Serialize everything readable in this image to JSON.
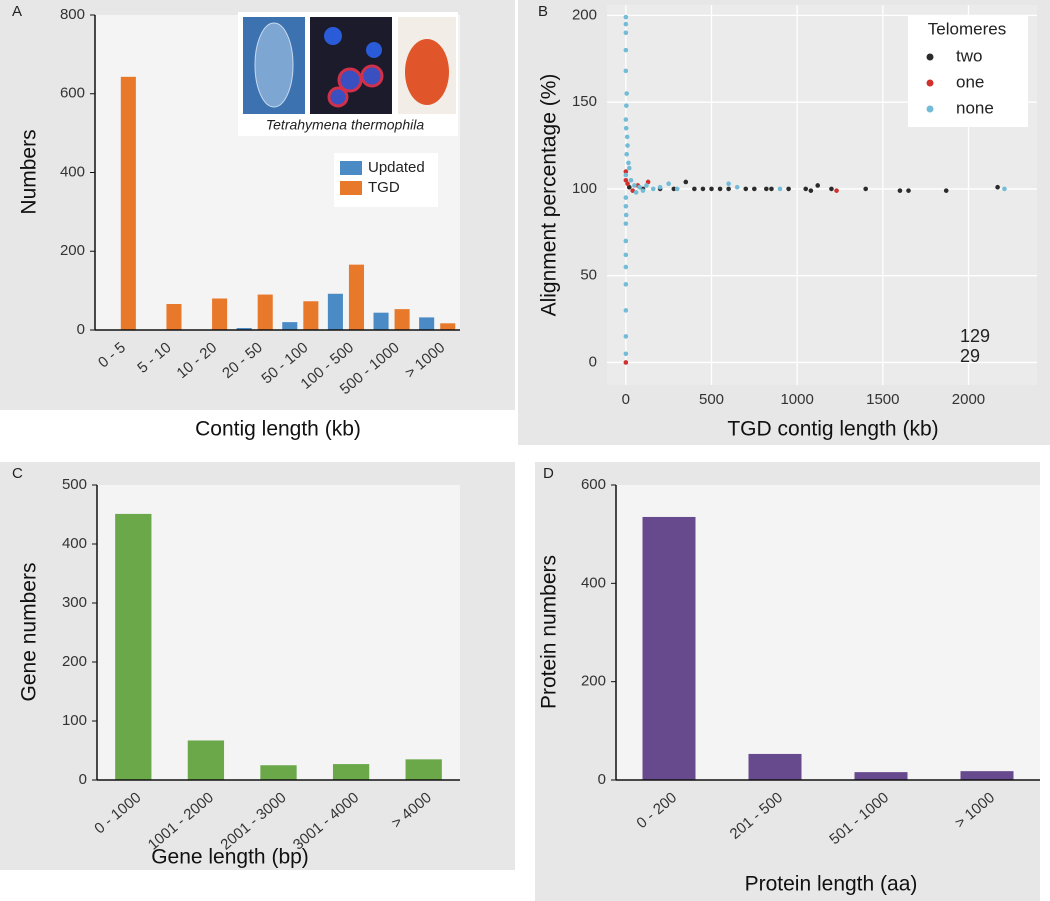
{
  "chart_data": [
    {
      "type": "bar",
      "panel": "A",
      "x_label": "Contig length (kb)",
      "y_label": "Numbers",
      "inset_caption": "Tetrahymena thermophila",
      "categories": [
        "0 - 5",
        "5 - 10",
        "10 - 20",
        "20 - 50",
        "50 - 100",
        "100 - 500",
        "500 - 1000",
        "> 1000"
      ],
      "series": [
        {
          "name": "Updated",
          "color": "#4a8bc6",
          "values": [
            0,
            0,
            0,
            5,
            20,
            92,
            44,
            32
          ]
        },
        {
          "name": "TGD",
          "color": "#e8792b",
          "values": [
            643,
            66,
            80,
            90,
            73,
            166,
            53,
            17
          ]
        }
      ],
      "ylim": [
        0,
        800
      ],
      "yticks": [
        0,
        200,
        400,
        600,
        800
      ],
      "grid": false
    },
    {
      "type": "scatter",
      "panel": "B",
      "x_label": "TGD contig length (kb)",
      "y_label": "Alignment percentage (%)",
      "legend_title": "Telomeres",
      "legend": "top-right",
      "series": [
        {
          "name": "two",
          "color": "#2b2b2b",
          "x": [
            20,
            100,
            200,
            280,
            350,
            400,
            450,
            500,
            550,
            600,
            700,
            750,
            820,
            850,
            950,
            1050,
            1080,
            1120,
            1200,
            1400,
            1600,
            1650,
            1870,
            2170
          ],
          "values": [
            101,
            100,
            100,
            100,
            104,
            100,
            100,
            100,
            100,
            100,
            100,
            100,
            100,
            100,
            100,
            100,
            99,
            102,
            100,
            100,
            99,
            99,
            99,
            101
          ]
        },
        {
          "name": "one",
          "color": "#d0312d",
          "x": [
            0,
            0,
            10,
            40,
            70,
            130,
            1230,
            0
          ],
          "values": [
            110,
            105,
            103,
            99,
            102,
            104,
            99,
            0
          ]
        },
        {
          "name": "none",
          "color": "#72bcd8",
          "x": [
            0,
            0,
            0,
            0,
            0,
            5,
            3,
            0,
            2,
            8,
            10,
            5,
            15,
            20,
            0,
            0,
            0,
            2,
            0,
            0,
            0,
            0,
            0,
            0,
            0,
            0,
            30,
            50,
            80,
            120,
            160,
            200,
            250,
            300,
            600,
            650,
            900,
            2210,
            60,
            100
          ],
          "values": [
            199,
            195,
            190,
            180,
            168,
            155,
            148,
            140,
            135,
            130,
            125,
            120,
            115,
            112,
            108,
            95,
            90,
            85,
            80,
            70,
            62,
            55,
            45,
            30,
            15,
            5,
            105,
            102,
            101,
            102,
            100,
            101,
            103,
            100,
            103,
            101,
            100,
            100,
            98,
            99
          ]
        }
      ],
      "annotations": [
        {
          "text": "129",
          "color": "#2b3a2b"
        },
        {
          "text": "29",
          "color": "#c0392b"
        }
      ],
      "xlim": [
        -110,
        2400
      ],
      "xticks": [
        0,
        500,
        1000,
        1500,
        2000
      ],
      "ylim": [
        -13,
        206
      ],
      "yticks": [
        0,
        50,
        100,
        150,
        200
      ],
      "grid": true
    },
    {
      "type": "bar",
      "panel": "C",
      "x_label": "Gene length (bp)",
      "y_label": "Gene numbers",
      "categories": [
        "0 - 1000",
        "1001 - 2000",
        "2001 - 3000",
        "3001 - 4000",
        "> 4000"
      ],
      "series": [
        {
          "name": "Gene numbers",
          "color": "#6aa84a",
          "values": [
            451,
            67,
            25,
            27,
            35
          ]
        }
      ],
      "ylim": [
        0,
        500
      ],
      "yticks": [
        0,
        100,
        200,
        300,
        400,
        500
      ],
      "grid": false
    },
    {
      "type": "bar",
      "panel": "D",
      "x_label": "Protein length (aa)",
      "y_label": "Protein numbers",
      "categories": [
        "0 - 200",
        "201 - 500",
        "501 - 1000",
        "> 1000"
      ],
      "series": [
        {
          "name": "Protein numbers",
          "color": "#674a8e",
          "values": [
            535,
            53,
            16,
            18
          ]
        }
      ],
      "ylim": [
        0,
        600
      ],
      "yticks": [
        0,
        200,
        400,
        600
      ],
      "grid": false
    }
  ]
}
